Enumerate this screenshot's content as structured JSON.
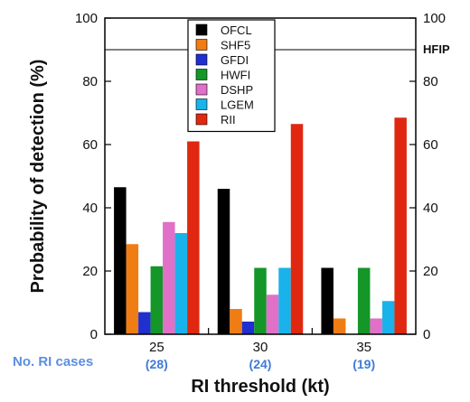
{
  "chart_data": {
    "type": "bar",
    "categories": [
      "25",
      "30",
      "35"
    ],
    "case_counts": [
      "(28)",
      "(24)",
      "(19)"
    ],
    "cases_label": "No. RI cases",
    "xlabel": "RI threshold (kt)",
    "ylabel": "Probability of detection (%)",
    "ylim": [
      0,
      100
    ],
    "yticks": [
      0,
      20,
      40,
      60,
      80,
      100
    ],
    "reference_line": {
      "label": "HFIP",
      "value": 90
    },
    "legend_position": "top-center",
    "grid": false,
    "series": [
      {
        "name": "OFCL",
        "color": "#000000",
        "values": [
          46.5,
          46,
          21
        ]
      },
      {
        "name": "SHF5",
        "color": "#f07c14",
        "values": [
          28.5,
          8,
          5
        ]
      },
      {
        "name": "GFDI",
        "color": "#1f2fd0",
        "values": [
          7,
          4,
          0
        ]
      },
      {
        "name": "HWFI",
        "color": "#149628",
        "values": [
          21.5,
          21,
          21
        ]
      },
      {
        "name": "DSHP",
        "color": "#e070c8",
        "values": [
          35.5,
          12.5,
          5
        ]
      },
      {
        "name": "LGEM",
        "color": "#1ab2ea",
        "values": [
          32,
          21,
          10.5
        ]
      },
      {
        "name": "RII",
        "color": "#e02810",
        "values": [
          61,
          66.5,
          68.5
        ]
      }
    ]
  }
}
